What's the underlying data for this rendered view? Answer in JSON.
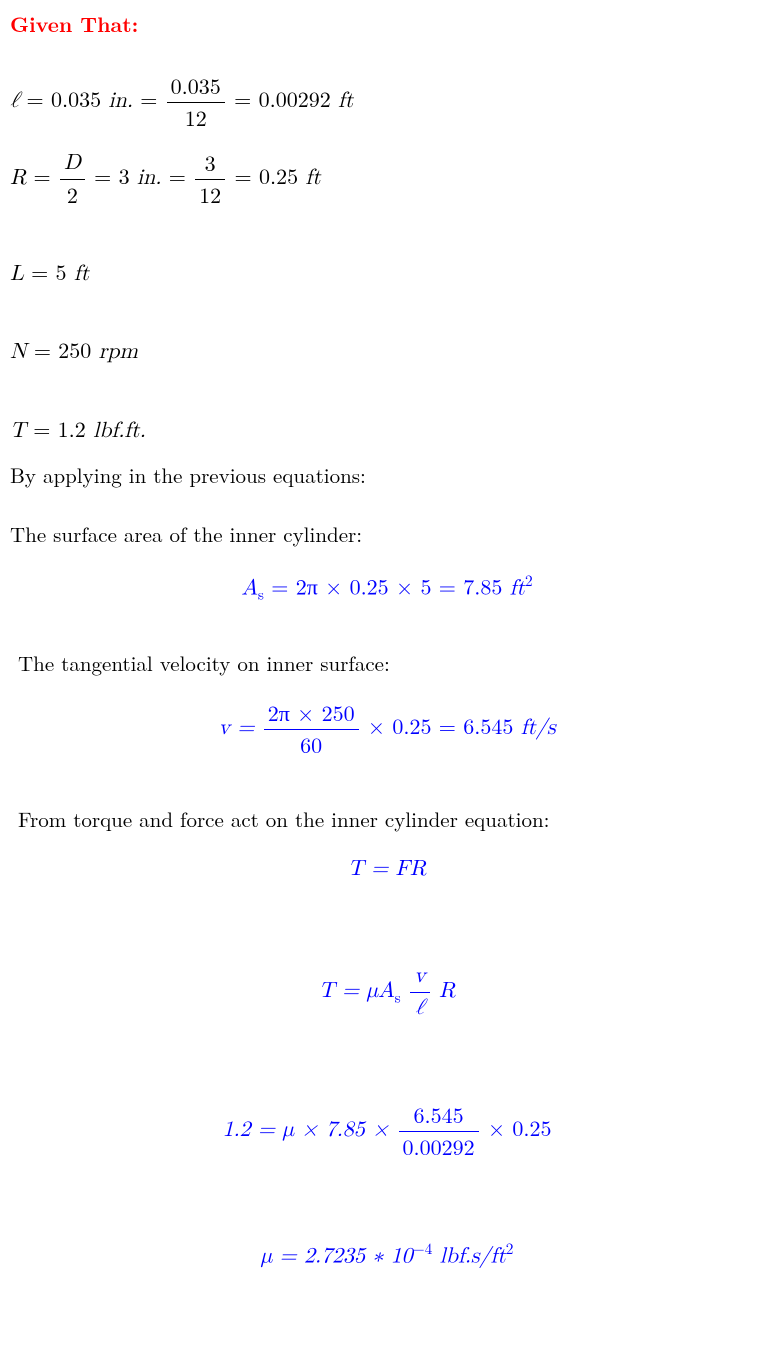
{
  "header": {
    "given_that": "Given That:"
  },
  "givens": {
    "ell": {
      "sym": "ℓ",
      "val1": "0.035",
      "unit1": "in.",
      "frac_num": "0.035",
      "frac_den": "12",
      "val2": "0.00292",
      "unit2": "ft"
    },
    "R": {
      "sym": "R",
      "frac1_num": "D",
      "frac1_den": "2",
      "val1": "3",
      "unit1": "in.",
      "frac2_num": "3",
      "frac2_den": "12",
      "val2": "0.25",
      "unit2": "ft"
    },
    "L": {
      "sym": "L",
      "val": "5",
      "unit": "ft"
    },
    "N": {
      "sym": "N",
      "val": "250",
      "unit": "rpm"
    },
    "T": {
      "sym": "T",
      "val": "1.2",
      "unit": "lbf.ft."
    }
  },
  "text": {
    "by_applying": "By applying in the previous equations:",
    "surface_area": "The surface area of the inner cylinder:",
    "tangential": "The tangential velocity on inner surface:",
    "torque_force": "From torque and force act on the inner cylinder equation:"
  },
  "eq": {
    "As": {
      "lhs_sym": "A",
      "lhs_sub": "s",
      "rhs": "= 2π × 0.25 × 5 = 7.85",
      "unit": "ft",
      "sup": "2"
    },
    "v": {
      "lhs": "v =",
      "frac_num": "2π × 250",
      "frac_den": "60",
      "rhs": "× 0.25 = 6.545",
      "unit": "ft/s"
    },
    "TFR": {
      "text": "T = FR"
    },
    "TmuA": {
      "pre": "T = μA",
      "sub": "s",
      "frac_num": "v",
      "frac_den": "ℓ",
      "post": "R"
    },
    "num": {
      "pre": "1.2 = μ × 7.85 ×",
      "frac_num": "6.545",
      "frac_den": "0.00292",
      "post": "× 0.25"
    },
    "mu": {
      "pre": "μ = 2.7235 ∗ 10",
      "sup": "−4",
      "unit": "lbf.s/ft",
      "sup2": "2"
    }
  },
  "colors": {
    "red": "#ff0000",
    "blue": "#0000ff",
    "black": "#000000",
    "bg": "#ffffff"
  }
}
